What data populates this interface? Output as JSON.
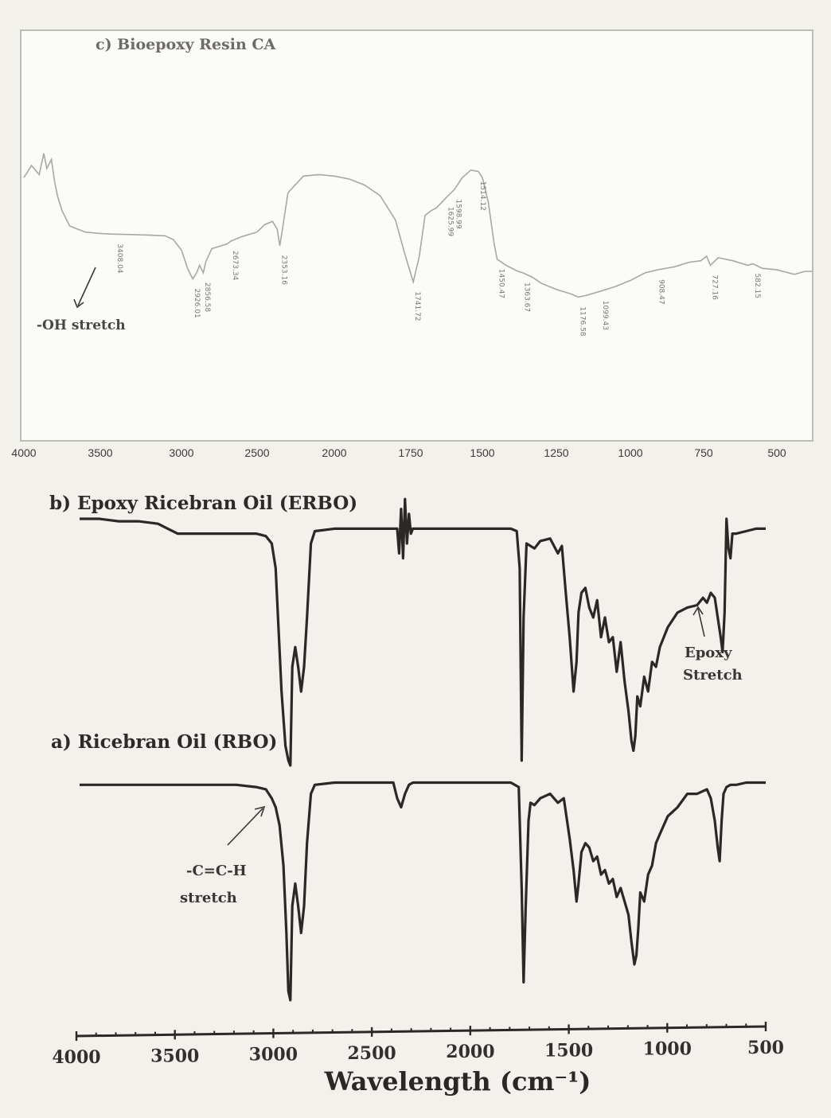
{
  "chart_data": [
    {
      "panel": "c",
      "type": "line",
      "title": "c) Bioepoxy Resin CA",
      "xlim": [
        4000,
        400
      ],
      "x_ticks": [
        4000,
        3500,
        3000,
        2500,
        2000,
        1750,
        1500,
        1250,
        1000,
        750,
        500
      ],
      "grid": false,
      "series": [
        {
          "x": [
            4000,
            3950,
            3900,
            3870,
            3850,
            3820,
            3800,
            3780,
            3750,
            3700,
            3600,
            3500,
            3408,
            3300,
            3200,
            3100,
            3050,
            3000,
            2960,
            2926,
            2900,
            2880,
            2856,
            2840,
            2800,
            2700,
            2673,
            2600,
            2500,
            2450,
            2400,
            2370,
            2353,
            2340,
            2300,
            2200,
            2100,
            2000,
            1950,
            1900,
            1850,
            1800,
            1770,
            1741,
            1720,
            1700,
            1680,
            1660,
            1640,
            1625,
            1598,
            1570,
            1540,
            1514,
            1500,
            1480,
            1460,
            1450,
            1420,
            1380,
            1363,
            1330,
            1300,
            1250,
            1200,
            1176,
            1150,
            1099,
            1050,
            1000,
            950,
            908,
            850,
            800,
            760,
            740,
            727,
            700,
            650,
            600,
            582,
            550,
            500,
            450,
            420,
            400
          ],
          "y": [
            72,
            80,
            74,
            88,
            78,
            84,
            70,
            60,
            50,
            40,
            36,
            35,
            34.6,
            34.3,
            34,
            33.5,
            31,
            24,
            12,
            5,
            9,
            14,
            9,
            16,
            25,
            28,
            30,
            33,
            36,
            41,
            43,
            38,
            27,
            35,
            62,
            73,
            74,
            73,
            71,
            67,
            60,
            44,
            22,
            3,
            20,
            47,
            50,
            52,
            56,
            59,
            64,
            72,
            77,
            76,
            72,
            56,
            28,
            18,
            14,
            10,
            9,
            6,
            2,
            -2,
            -5,
            -7,
            -6,
            -3,
            0,
            4,
            9,
            11,
            13,
            16,
            17,
            20,
            14,
            19,
            17,
            14,
            15,
            12,
            11,
            8,
            10,
            10
          ]
        }
      ],
      "peak_labels": [
        "3408.04",
        "2926.01",
        "2856.58",
        "2673.34",
        "2353.16",
        "1741.72",
        "1625.99",
        "1598.99",
        "1514.12",
        "1450.47",
        "1363.67",
        "1176.58",
        "1099.43",
        "908.47",
        "727.16",
        "582.15"
      ],
      "annotations": [
        "-OH stretch"
      ]
    },
    {
      "panel": "b",
      "type": "line",
      "title": "b) Epoxy Ricebran Oil (ERBO)",
      "xlim": [
        4000,
        500
      ],
      "series": [
        {
          "x": [
            4000,
            3900,
            3800,
            3700,
            3600,
            3550,
            3500,
            3400,
            3300,
            3200,
            3100,
            3050,
            3020,
            3000,
            2970,
            2950,
            2935,
            2925,
            2915,
            2900,
            2885,
            2870,
            2855,
            2840,
            2820,
            2800,
            2700,
            2600,
            2500,
            2420,
            2380,
            2370,
            2360,
            2350,
            2340,
            2330,
            2320,
            2310,
            2300,
            2200,
            2100,
            2000,
            1900,
            1800,
            1770,
            1755,
            1745,
            1735,
            1720,
            1700,
            1680,
            1650,
            1600,
            1560,
            1540,
            1520,
            1500,
            1480,
            1465,
            1455,
            1440,
            1420,
            1400,
            1380,
            1360,
            1340,
            1320,
            1300,
            1280,
            1260,
            1240,
            1220,
            1200,
            1185,
            1175,
            1165,
            1155,
            1140,
            1120,
            1100,
            1080,
            1060,
            1040,
            1000,
            950,
            900,
            850,
            820,
            800,
            780,
            760,
            745,
            730,
            720,
            710,
            700,
            690,
            680,
            670,
            650,
            600,
            550,
            500
          ],
          "y": [
            100,
            100,
            99,
            99,
            98,
            96,
            94,
            94,
            94,
            94,
            94,
            93,
            90,
            80,
            30,
            8,
            2,
            0,
            40,
            48,
            40,
            30,
            40,
            60,
            90,
            95,
            96,
            96,
            96,
            96,
            96,
            86,
            104,
            84,
            108,
            90,
            102,
            94,
            96,
            96,
            96,
            96,
            96,
            96,
            95,
            80,
            2,
            60,
            90,
            89,
            88,
            91,
            92,
            86,
            89,
            70,
            52,
            30,
            42,
            62,
            70,
            72,
            64,
            60,
            67,
            52,
            60,
            50,
            52,
            38,
            50,
            34,
            22,
            10,
            6,
            12,
            28,
            24,
            36,
            30,
            42,
            40,
            48,
            56,
            62,
            64,
            65,
            68,
            66,
            70,
            68,
            60,
            52,
            46,
            62,
            100,
            88,
            84,
            94,
            94,
            95,
            96,
            96
          ]
        }
      ]
    },
    {
      "panel": "a",
      "type": "line",
      "title": "a) Ricebran Oil (RBO)",
      "xlim": [
        4000,
        500
      ],
      "series": [
        {
          "x": [
            4000,
            3900,
            3800,
            3700,
            3600,
            3500,
            3400,
            3300,
            3200,
            3100,
            3050,
            3020,
            3000,
            2980,
            2960,
            2945,
            2935,
            2925,
            2915,
            2900,
            2885,
            2870,
            2855,
            2840,
            2820,
            2800,
            2700,
            2600,
            2500,
            2400,
            2380,
            2360,
            2340,
            2320,
            2300,
            2200,
            2100,
            2000,
            1900,
            1800,
            1760,
            1745,
            1735,
            1725,
            1710,
            1700,
            1680,
            1650,
            1600,
            1560,
            1530,
            1500,
            1480,
            1465,
            1455,
            1440,
            1420,
            1400,
            1380,
            1360,
            1340,
            1320,
            1300,
            1280,
            1260,
            1240,
            1220,
            1200,
            1185,
            1170,
            1160,
            1150,
            1140,
            1120,
            1100,
            1080,
            1060,
            1040,
            1000,
            950,
            900,
            850,
            800,
            780,
            760,
            745,
            735,
            725,
            715,
            700,
            680,
            650,
            600,
            550,
            500
          ],
          "y": [
            96,
            96,
            96,
            96,
            96,
            96,
            96,
            96,
            96,
            95,
            94,
            90,
            86,
            78,
            60,
            30,
            4,
            0,
            42,
            52,
            42,
            30,
            42,
            70,
            92,
            96,
            97,
            97,
            97,
            97,
            90,
            86,
            92,
            96,
            97,
            97,
            97,
            97,
            97,
            97,
            95,
            50,
            8,
            40,
            80,
            88,
            87,
            90,
            92,
            88,
            90,
            72,
            58,
            44,
            52,
            66,
            70,
            68,
            62,
            64,
            56,
            58,
            52,
            54,
            46,
            50,
            44,
            38,
            26,
            16,
            20,
            32,
            48,
            44,
            56,
            60,
            70,
            74,
            82,
            86,
            92,
            92,
            94,
            90,
            80,
            68,
            62,
            80,
            92,
            95,
            96,
            96,
            97,
            97,
            97
          ]
        }
      ],
      "annotations": [
        "Epoxy",
        "Stretch",
        "-C=C-H",
        "stretch"
      ]
    }
  ],
  "bottom_axis": {
    "xlim": [
      4000,
      500
    ],
    "ticks": [
      4000,
      3500,
      3000,
      2500,
      2000,
      1500,
      1000,
      500
    ],
    "xlabel": "Wavelength (cm⁻¹)"
  }
}
